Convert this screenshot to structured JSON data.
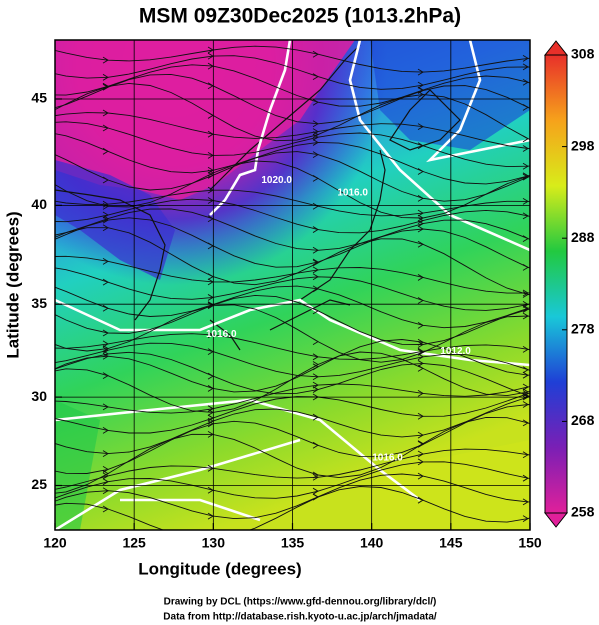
{
  "chart_data": {
    "type": "map",
    "title": "MSM 09Z30Dec2025 (1013.2hPa)",
    "xlabel": "Longitude (degrees)",
    "ylabel": "Latitude  (degrees)",
    "xlim": [
      120,
      150
    ],
    "xticks": [
      120,
      125,
      130,
      135,
      140,
      145,
      150
    ],
    "ylim": [
      22.4,
      47.6
    ],
    "yticks": [
      25,
      30,
      35,
      40,
      45
    ],
    "y_scale": "mercator",
    "grid": true,
    "colorbar": {
      "clim": [
        258,
        308
      ],
      "ticks": [
        308,
        298,
        288,
        278,
        268,
        258
      ],
      "colors": [
        "#e0209a",
        "#7a1fb5",
        "#1f3fd6",
        "#19c8d8",
        "#22c940",
        "#d8ec1a",
        "#f6a21b",
        "#e8302a"
      ]
    },
    "contour_labels": [
      {
        "text": "1020.0",
        "lon": 134.0,
        "lat": 41.2
      },
      {
        "text": "1016.0",
        "lon": 138.8,
        "lat": 40.6
      },
      {
        "text": "1016.0",
        "lon": 130.5,
        "lat": 33.4
      },
      {
        "text": "1012.0",
        "lon": 145.3,
        "lat": 32.5
      },
      {
        "text": "1016.0",
        "lon": 141.0,
        "lat": 26.6
      }
    ],
    "credits": [
      "Drawing by DCL (https://www.gfd-dennou.org/library/dcl/)",
      "Data from http://database.rish.kyoto-u.ac.jp/arch/jmadata/"
    ]
  }
}
